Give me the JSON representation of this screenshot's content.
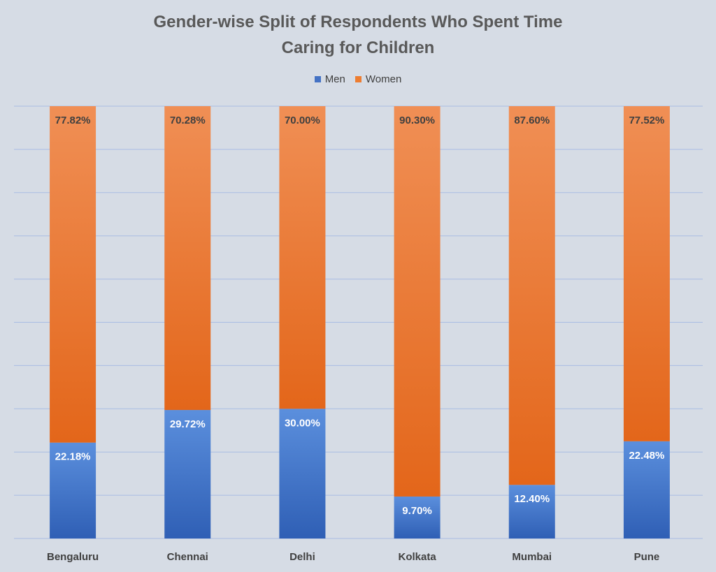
{
  "colors": {
    "men_top": "#5b8fdd",
    "men_bottom": "#2f5fb5",
    "women_top": "#f08f55",
    "women_bottom": "#e3661a",
    "grid": "#a9bde4",
    "women_label": "#404040",
    "men_label": "#ffffff",
    "men_legend": "#4472c4",
    "women_legend": "#ed7d31"
  },
  "chart_data": {
    "type": "bar",
    "stacked": true,
    "title": "Gender-wise Split of Respondents Who Spent Time Caring for Children",
    "title_lines": [
      "Gender-wise Split of Respondents Who Spent Time",
      "Caring for Children"
    ],
    "categories": [
      "Bengaluru",
      "Chennai",
      "Delhi",
      "Kolkata",
      "Mumbai",
      "Pune"
    ],
    "series": [
      {
        "name": "Men",
        "values": [
          22.18,
          29.72,
          30.0,
          9.7,
          12.4,
          22.48
        ],
        "labels": [
          "22.18%",
          "29.72%",
          "30.00%",
          "9.70%",
          "12.40%",
          "22.48%"
        ]
      },
      {
        "name": "Women",
        "values": [
          77.82,
          70.28,
          70.0,
          90.3,
          87.6,
          77.52
        ],
        "labels": [
          "77.82%",
          "70.28%",
          "70.00%",
          "90.30%",
          "87.60%",
          "77.52%"
        ]
      }
    ],
    "ylim": [
      0,
      100
    ],
    "grid": true,
    "legend_position": "top",
    "xlabel": "",
    "ylabel": ""
  }
}
